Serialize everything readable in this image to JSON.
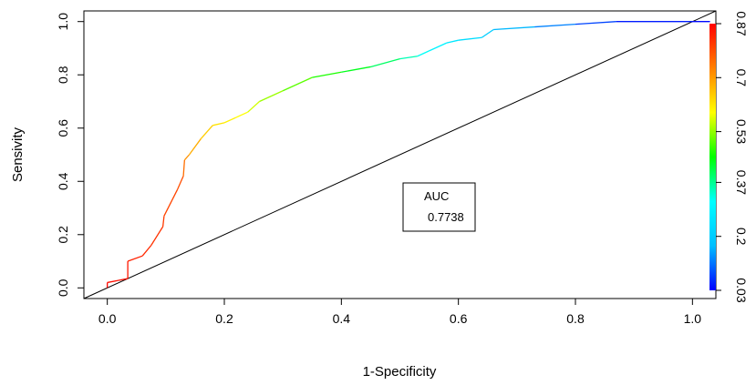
{
  "chart_data": {
    "type": "line",
    "title": "",
    "xlabel": "1-Specificity",
    "ylabel": "Sensivity",
    "xlim": [
      -0.04,
      1.04
    ],
    "ylim": [
      -0.04,
      1.04
    ],
    "x_ticks": [
      "0.0",
      "0.2",
      "0.4",
      "0.6",
      "0.8",
      "1.0"
    ],
    "y_ticks": [
      "0.0",
      "0.2",
      "0.4",
      "0.6",
      "0.8",
      "1.0"
    ],
    "grid": false,
    "reference_line": {
      "from": [
        -0.04,
        -0.04
      ],
      "to": [
        1.04,
        1.04
      ],
      "color": "#000000"
    },
    "auc_label": "AUC",
    "auc_value": "0.7738",
    "colorbar": {
      "ticks": [
        "0.03",
        "0.2",
        "0.37",
        "0.53",
        "0.7",
        "0.87"
      ],
      "range": [
        0.03,
        0.87
      ],
      "colors": [
        "#0000ff",
        "#00bfff",
        "#00ffff",
        "#00ff00",
        "#ffff00",
        "#ff8000",
        "#ff0000"
      ]
    },
    "roc_points": [
      [
        0.0,
        0.0
      ],
      [
        0.0,
        0.02
      ],
      [
        0.035,
        0.035
      ],
      [
        0.035,
        0.1
      ],
      [
        0.06,
        0.12
      ],
      [
        0.075,
        0.16
      ],
      [
        0.095,
        0.23
      ],
      [
        0.097,
        0.27
      ],
      [
        0.12,
        0.37
      ],
      [
        0.13,
        0.42
      ],
      [
        0.132,
        0.48
      ],
      [
        0.14,
        0.5
      ],
      [
        0.16,
        0.56
      ],
      [
        0.18,
        0.61
      ],
      [
        0.2,
        0.62
      ],
      [
        0.22,
        0.64
      ],
      [
        0.24,
        0.66
      ],
      [
        0.26,
        0.7
      ],
      [
        0.3,
        0.74
      ],
      [
        0.35,
        0.79
      ],
      [
        0.4,
        0.81
      ],
      [
        0.45,
        0.83
      ],
      [
        0.5,
        0.86
      ],
      [
        0.53,
        0.87
      ],
      [
        0.55,
        0.89
      ],
      [
        0.58,
        0.92
      ],
      [
        0.6,
        0.93
      ],
      [
        0.64,
        0.94
      ],
      [
        0.66,
        0.97
      ],
      [
        0.73,
        0.98
      ],
      [
        0.8,
        0.99
      ],
      [
        0.87,
        1.0
      ],
      [
        1.0,
        1.0
      ],
      [
        1.03,
        1.0
      ]
    ],
    "roc_thresholds": [
      0.87,
      0.86,
      0.85,
      0.84,
      0.83,
      0.82,
      0.81,
      0.8,
      0.79,
      0.78,
      0.72,
      0.7,
      0.66,
      0.63,
      0.61,
      0.6,
      0.58,
      0.55,
      0.52,
      0.48,
      0.45,
      0.42,
      0.37,
      0.33,
      0.3,
      0.27,
      0.25,
      0.22,
      0.18,
      0.15,
      0.1,
      0.06,
      0.04,
      0.03
    ]
  }
}
